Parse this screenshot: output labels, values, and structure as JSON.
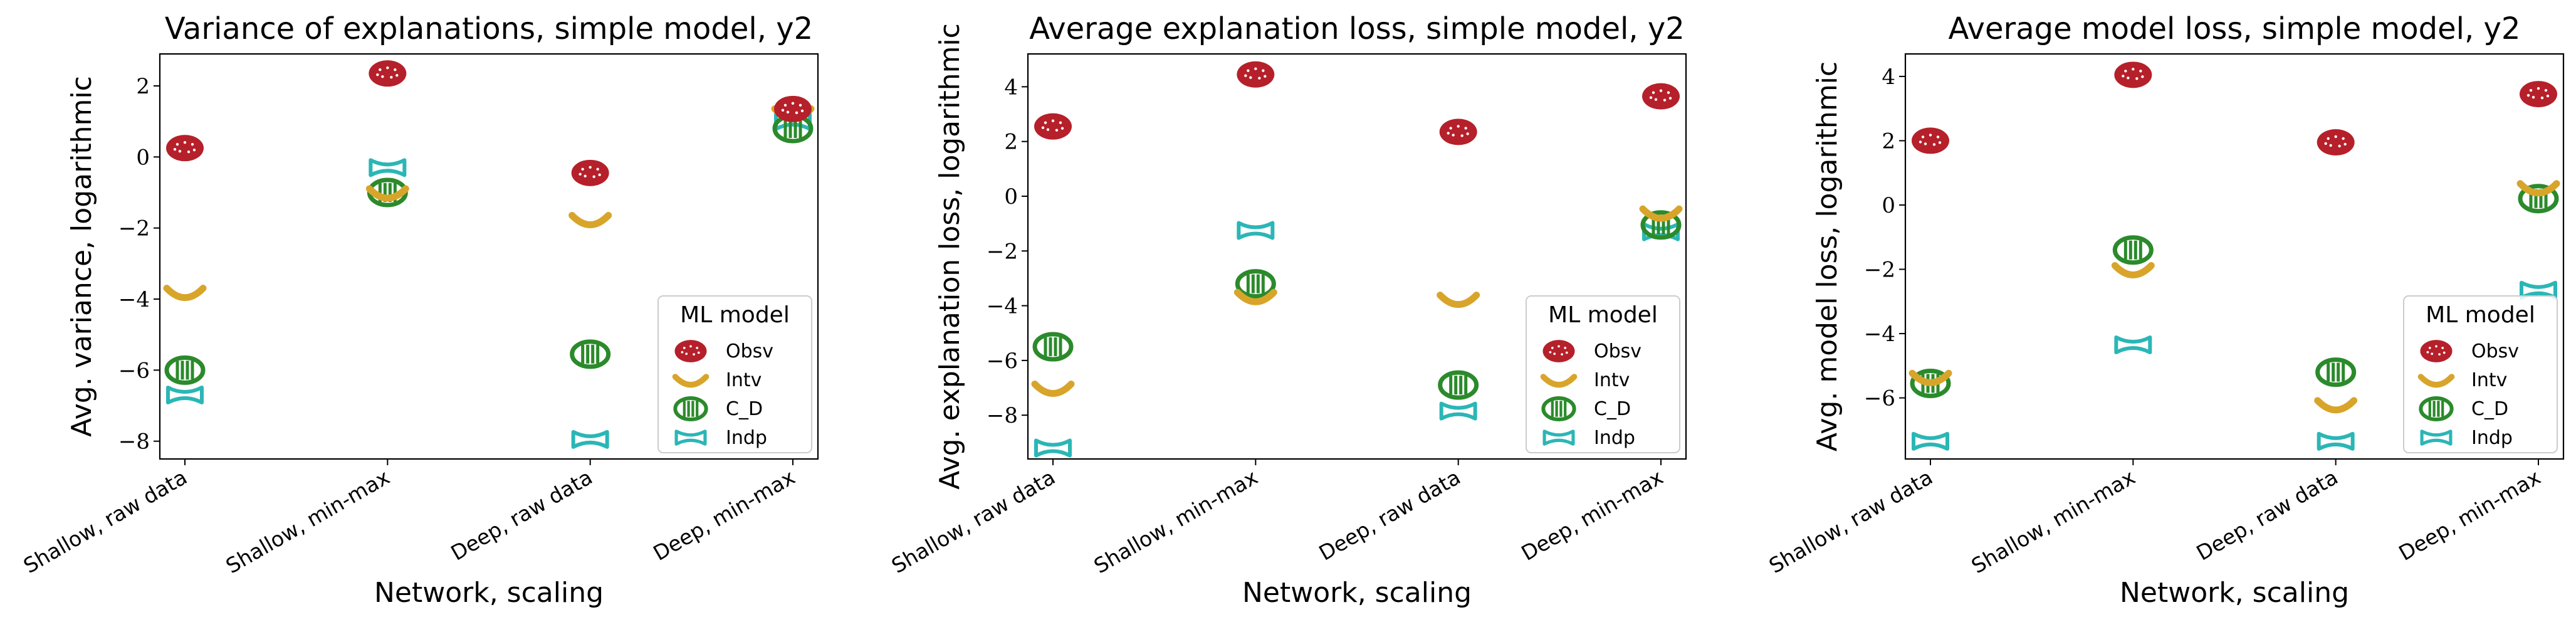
{
  "chart_data": [
    {
      "type": "scatter",
      "title": "Variance of explanations, simple model, y2",
      "xlabel": "Network, scaling",
      "ylabel": "Avg. variance, logarithmic",
      "categories": [
        "Shallow, raw data",
        "Shallow, min-max",
        "Deep, raw data",
        "Deep, min-max"
      ],
      "ylim": [
        -8.5,
        2.9
      ],
      "yticks": [
        -8,
        -6,
        -4,
        -2,
        0,
        2
      ],
      "legend_title": "ML model",
      "legend_position": "lower-right",
      "series": [
        {
          "name": "Obsv",
          "values": [
            0.25,
            2.35,
            -0.45,
            1.35
          ]
        },
        {
          "name": "Intv",
          "values": [
            -3.8,
            -1.0,
            -1.75,
            1.25
          ]
        },
        {
          "name": "C_D",
          "values": [
            -6.0,
            -1.0,
            -5.55,
            0.8
          ]
        },
        {
          "name": "Indp",
          "values": [
            -6.7,
            -0.3,
            -7.95,
            1.0
          ]
        }
      ]
    },
    {
      "type": "scatter",
      "title": "Average explanation loss, simple model, y2",
      "xlabel": "Network, scaling",
      "ylabel": "Avg. explanation loss, logarithmic",
      "categories": [
        "Shallow, raw data",
        "Shallow, min-max",
        "Deep, raw data",
        "Deep, min-max"
      ],
      "ylim": [
        -9.6,
        5.2
      ],
      "yticks": [
        -8,
        -6,
        -4,
        -2,
        0,
        2,
        4
      ],
      "legend_title": "ML model",
      "legend_position": "lower-right",
      "series": [
        {
          "name": "Obsv",
          "values": [
            2.55,
            4.45,
            2.35,
            3.65
          ]
        },
        {
          "name": "Intv",
          "values": [
            -7.0,
            -3.65,
            -3.75,
            -0.6
          ]
        },
        {
          "name": "C_D",
          "values": [
            -5.5,
            -3.2,
            -6.9,
            -1.05
          ]
        },
        {
          "name": "Indp",
          "values": [
            -9.2,
            -1.25,
            -7.85,
            -1.3
          ]
        }
      ]
    },
    {
      "type": "scatter",
      "title": "Average model loss, simple model, y2",
      "xlabel": "Network, scaling",
      "ylabel": "Avg. model loss, logarithmic",
      "categories": [
        "Shallow, raw data",
        "Shallow, min-max",
        "Deep, raw data",
        "Deep, min-max"
      ],
      "ylim": [
        -7.9,
        4.7
      ],
      "yticks": [
        -6,
        -4,
        -2,
        0,
        2,
        4
      ],
      "legend_title": "ML model",
      "legend_position": "lower-right",
      "series": [
        {
          "name": "Obsv",
          "values": [
            2.0,
            4.05,
            1.95,
            3.45
          ]
        },
        {
          "name": "Intv",
          "values": [
            -5.35,
            -2.0,
            -6.2,
            0.55
          ]
        },
        {
          "name": "C_D",
          "values": [
            -5.55,
            -1.4,
            -5.2,
            0.2
          ]
        },
        {
          "name": "Indp",
          "values": [
            -7.35,
            -4.35,
            -7.35,
            -2.65
          ]
        }
      ]
    }
  ],
  "colors": {
    "Obsv": "#b5202a",
    "Intv": "#d8a52a",
    "C_D": "#2b8a2b",
    "Indp": "#2bb6b6"
  }
}
